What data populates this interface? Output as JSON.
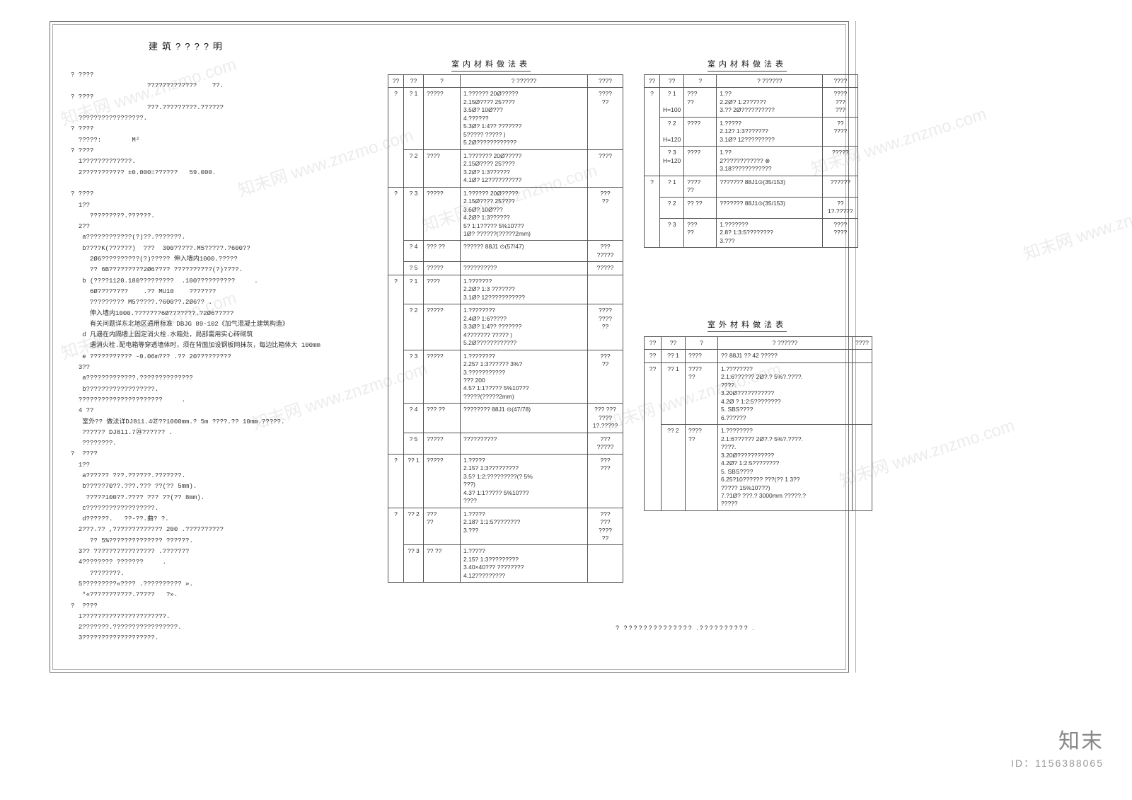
{
  "page_title": "建筑????明",
  "watermarks": [
    "知末网 www.znzmo.com",
    "知末网 www.znzmo.com",
    "知末网 www.znzmo.com",
    "知末网 www.znzmo.com",
    "知末网 www.znzmo.com",
    "知末网 www.znzmo.com",
    "知末网 www.znzmo.com",
    "知末网 www.znzmo.com",
    "知末网 www.znzmo.com"
  ],
  "brand_name": "知末",
  "brand_id": "ID：1156388065",
  "notes_block": "? ????\n                    ?????????????    ??.\n? ????\n                    ???.?????????.??????\n  ?????????????????.\n? ????\n  ?????:        M²\n? ????\n  1?????????????.\n  2??????????? ±0.000=??????   59.000.\n\n? ????\n  1??\n     ?????????.??????.\n  2??\n   a????????????(?)??.???????.\n   b????K(??????)  ???  300?????.M5?????.?600??\n     2Ø6??????????(?)????? 伸入墙内1000.?????\n     ?? 6B?????????2Ø6???? ??????????(?)????.\n   b (????1120.180?????????  .100??????????     .\n     6Ø????????    .?? MU10    ???????\n     ????????? M5?????.?600??.2Ø6?? .\n     伸入墙内1000.???????6Ø???????.?2Ø6?????\n     有关问题详东北地区通用标准 DBJG 89-102《加气混凝土建筑构造》\n   d 凡遇在内隔墙上固定消火栓.水箱处，局部需用实心砖砌筑\n     遇消火栓.配电箱等穿透墙体时，须在背面加设钢板网抹灰，每边比箱体大 100mm\n   e ??????????? -0.06m??? .?? 20?????????\n  3??\n   a?????????????.??????????????\n   b??????????????????.\n  ??????????????????????     .\n  4 ??\n   室外?? 做法详DJ811.4㉗??1000mm.? 5m ????.?? 10mm.?????.\n   ?????? DJ811.7㉔?????? .\n   ????????.\n?  ????\n  1??\n   a?????? ???.??????.???????.\n   b?????70??.???.??? ??(?? 5mm).\n    ?????100??.???? ??? ??(?? 8mm).\n   c??????????????????.\n   d??????.   ??-??.曲? ?.\n  2???.?? ,????????????? 200 .??????????\n     ?? 5%?????????????? ??????.\n  3?? ???????????????? .???????\n  4???????? ???????     .\n     ????????.\n  5?????????«???? .?????????? ».\n   *«???????????.?????   ?».\n?  ????\n  1??????????????????????.\n  2???????.?????????????????.\n  3???????????????????.",
  "table1_title": "室内材料做法表",
  "table2_title": "室内材料做法表",
  "table3_title": "室外材料做法表",
  "table_headers": [
    "??",
    "??",
    "?",
    "?  ??????",
    "????"
  ],
  "table1_rows": [
    {
      "g": "?",
      "r": "? 1",
      "t": "?????",
      "d": "1.??????  20Ø?????\n2.15Ø????  25????\n3.5Ø? 10Ø???\n4.??????\n5.3Ø? 1:4??  ???????\n5?????    ?????  )\n5.2Ø????????????",
      "n": "????\n??"
    },
    {
      "g": "",
      "r": "? 2",
      "t": "????",
      "d": "1.??????? 20Ø?????\n2.15Ø????  25????\n3.2Ø? 1:3??????\n4.1Ø?   12??????????",
      "n": "????"
    },
    {
      "g": "?",
      "r": "? 3",
      "t": "?????",
      "d": "1.??????  20Ø?????\n2.15Ø????  25????\n3.6Ø? 10Ø???\n4.2Ø? 1:3??????\n  5? 1:1????? 5%10???\n  1Ø? ??????(?????2mm)",
      "n": "???\n??"
    },
    {
      "g": "",
      "r": "? 4",
      "t": "??? ??",
      "d": "??????    88J1 ⊙(57/47)",
      "n": "???\n?????"
    },
    {
      "g": "",
      "r": "? 5",
      "t": "?????",
      "d": "??????????",
      "n": "?????"
    },
    {
      "g": "?",
      "r": "? 1",
      "t": "????",
      "d": "1.???????\n2.2Ø? 1:3 ???????\n3.1Ø?   12???????????",
      "n": ""
    },
    {
      "g": "",
      "r": "? 2",
      "t": "?????",
      "d": "1.????????\n2.4Ø? 1:6?????\n3.3Ø? 1:4?? ???????\n4???????   ?????  )\n5.2Ø????????????",
      "n": "????\n????\n??"
    },
    {
      "g": "",
      "r": "? 3",
      "t": "?????",
      "d": "1.????????\n2.25? 1:3?????? 3%?\n3.???????????\n  ??? 200\n4.5? 1:1????? 5%10???\n  ?????(?????2mm)",
      "n": "???\n??"
    },
    {
      "g": "",
      "r": "? 4",
      "t": "??? ??",
      "d": "????????    88J1 ⊙(47/78)",
      "n": "??? ???\n????\n1?.?????"
    },
    {
      "g": "",
      "r": "? 5",
      "t": "?????",
      "d": "??????????",
      "n": "???\n?????"
    },
    {
      "g": "?",
      "r": "?? 1",
      "t": "?????",
      "d": "1.?????\n2.15? 1:3?????????\n3.5? 1:2:?????????(? 5%\n  ???)\n4.3? 1:1????? 5%10???\n  ????",
      "n": "???\n???"
    },
    {
      "g": "?",
      "r": "?? 2",
      "t": "???\n  ??",
      "d": "1.?????\n2.18? 1:1:5????????\n3.???",
      "n": "???\n???\n????\n??"
    },
    {
      "g": "",
      "r": "?? 3",
      "t": "?? ??",
      "d": "1.?????\n2.15? 1:3?????????\n3.40×40??? ????????\n4.12?????????",
      "n": ""
    }
  ],
  "table2_rows": [
    {
      "g": "?",
      "r": "? 1\n\nH=100",
      "t": "???\n??",
      "d": "1.??\n2.2Ø? 1:2??????\n3.?? 2Ø??????????",
      "n": "????\n???\n???"
    },
    {
      "g": "",
      "r": "? 2\n\nH=120",
      "t": "????",
      "d": "1.?????\n2.12? 1:3???????\n3.1Ø?   12?????????",
      "n": "??\n????"
    },
    {
      "g": "",
      "r": "? 3\nH=120",
      "t": "????",
      "d": "1.??\n2???????????? ⊗\n3.18????????????",
      "n": "?????"
    },
    {
      "g": "?",
      "r": "? 1",
      "t": "????\n??",
      "d": "???????    88J1⊙(35/153)",
      "n": "??????"
    },
    {
      "g": "",
      "r": "? 2",
      "t": "?? ??",
      "d": "???????    88J1⊙(35/153)",
      "n": "??\n1?.?????"
    },
    {
      "g": "",
      "r": "? 3",
      "t": "???\n??",
      "d": "1.???????\n2.8? 1:3:5????????\n3.???",
      "n": "????\n????"
    }
  ],
  "table3_rows": [
    {
      "g": "??",
      "r": "?? 1",
      "t": "????",
      "d": "?? 88J1  ?? 42 ?????",
      "n": ""
    },
    {
      "g": "??",
      "r": "?? 1",
      "t": "????\n??",
      "d": "1.????????\n2.1:6??????   2Ø?.? 5%?.????. \n  ????.\n3.20Ø???????????\n4.2Ø ? 1:2:5????????\n5. SBS????\n6.??????",
      "n": ""
    },
    {
      "g": "",
      "r": "?? 2",
      "t": "????\n??",
      "d": "1.????????\n2.1:6??????    2Ø?.? 5%?.????.\n  ????.\n3.20Ø???????????\n4.2Ø? 1:2:5????????\n5. SBS????\n6.25?10?????? ???(?? 1 3??\n  ????? 15%10???)\n7.?1Ø? ???.? 3000mm ?????.?\n  ?????",
      "n": ""
    }
  ],
  "foot_note": "?  ??????????????   .?????????? ."
}
